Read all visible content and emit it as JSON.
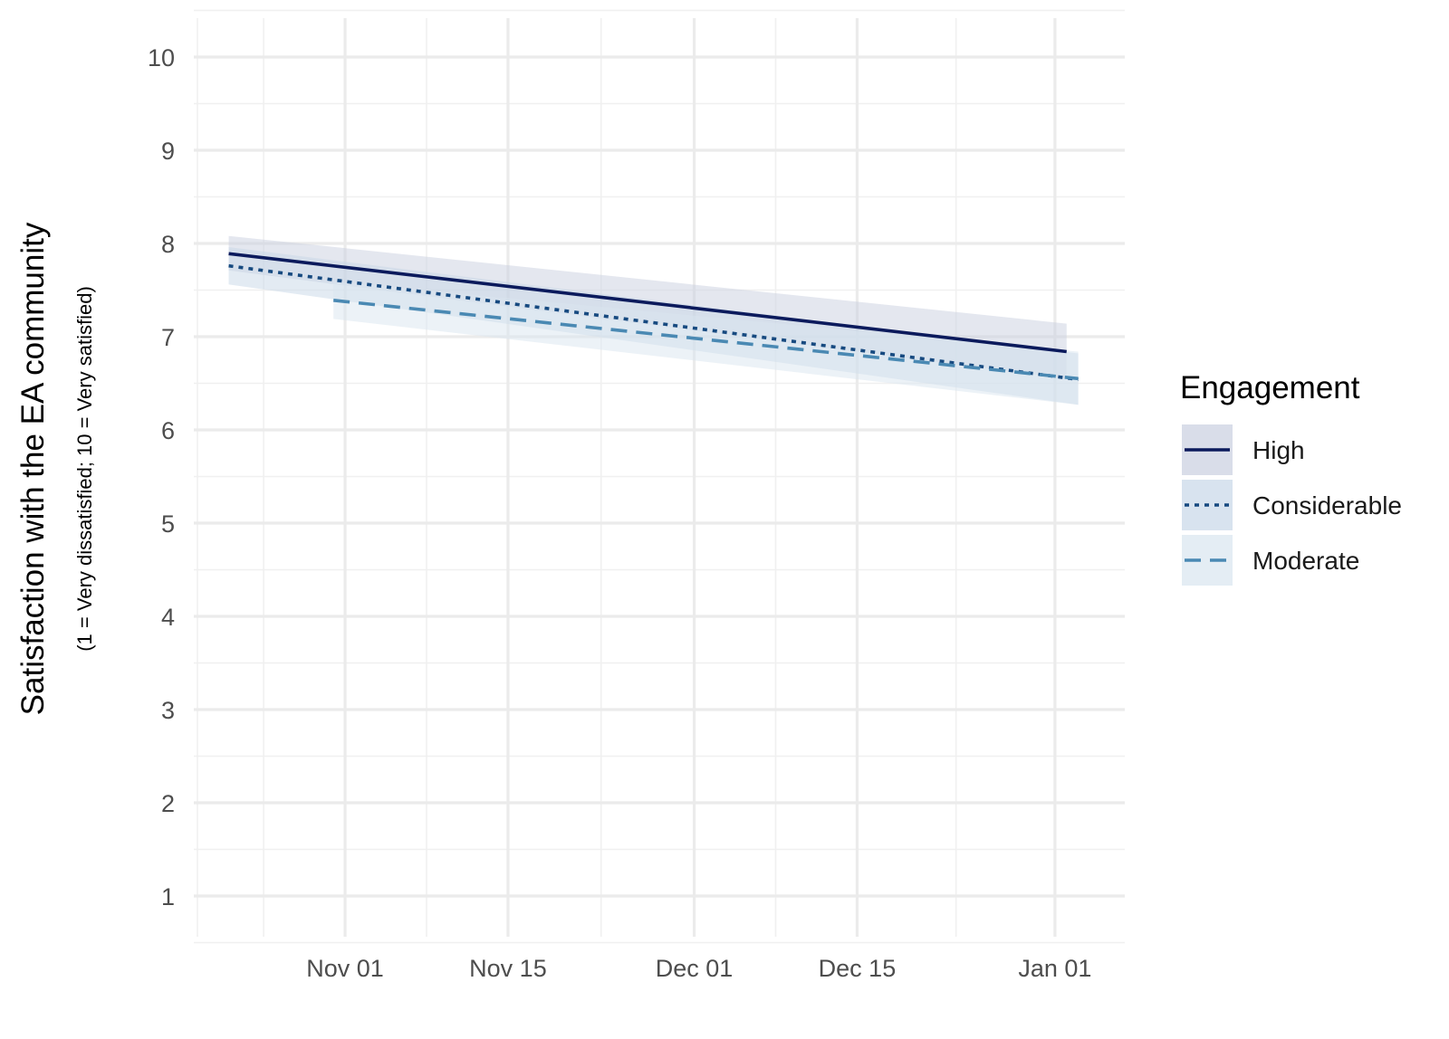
{
  "chart_data": {
    "type": "line",
    "ylabel": "Satisfaction with the EA community",
    "ylabel_sub": "(1 = Very dissatisfied; 10 = Very satisfied)",
    "xlabel": "",
    "ylim": [
      1,
      10
    ],
    "yticks": [
      1,
      2,
      3,
      4,
      5,
      6,
      7,
      8,
      9,
      10
    ],
    "xlim": [
      "2021-10-19",
      "2022-01-07"
    ],
    "xticks": [
      {
        "date": "2021-11-01",
        "label": "Nov 01"
      },
      {
        "date": "2021-11-15",
        "label": "Nov 15"
      },
      {
        "date": "2021-12-01",
        "label": "Dec 01"
      },
      {
        "date": "2021-12-15",
        "label": "Dec 15"
      },
      {
        "date": "2022-01-01",
        "label": "Jan 01"
      }
    ],
    "grid": true,
    "legend": {
      "title": "Engagement",
      "position": "right"
    },
    "series": [
      {
        "name": "High",
        "color": "#0b1a5c",
        "band_color": "#c9cfe0",
        "line_style": "solid",
        "x": [
          "2021-10-22",
          "2022-01-02"
        ],
        "y": [
          7.89,
          6.84
        ],
        "lower": [
          7.71,
          6.55
        ],
        "upper": [
          8.08,
          7.14
        ]
      },
      {
        "name": "Considerable",
        "color": "#174a80",
        "band_color": "#c7d7e8",
        "line_style": "dotted",
        "x": [
          "2021-10-22",
          "2022-01-03"
        ],
        "y": [
          7.76,
          6.54
        ],
        "lower": [
          7.56,
          6.27
        ],
        "upper": [
          7.96,
          6.82
        ]
      },
      {
        "name": "Moderate",
        "color": "#4a89b3",
        "band_color": "#d9e6f0",
        "line_style": "dashed",
        "x": [
          "2021-10-31",
          "2022-01-03"
        ],
        "y": [
          7.39,
          6.55
        ],
        "lower": [
          7.19,
          6.27
        ],
        "upper": [
          7.59,
          6.84
        ]
      }
    ]
  }
}
